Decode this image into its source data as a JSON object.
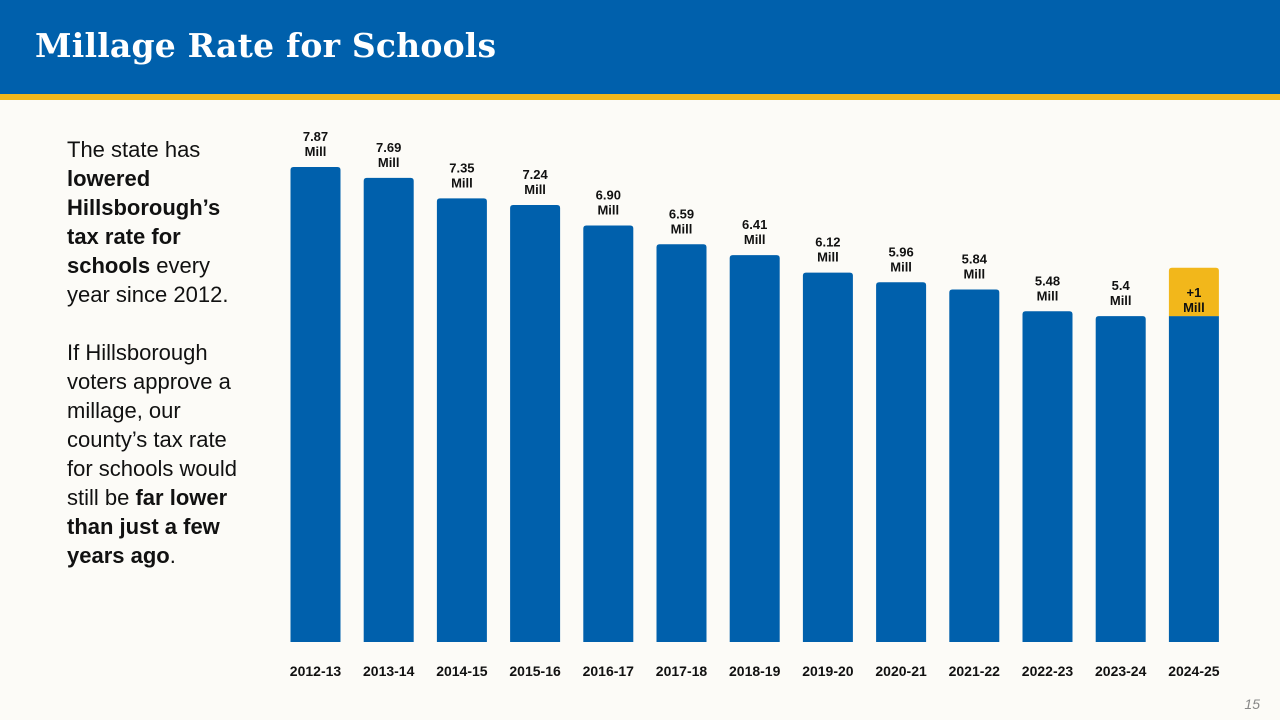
{
  "header": {
    "title": "Millage Rate for Schools"
  },
  "sidebar": {
    "p1": {
      "t1": "The state has ",
      "b1": "lowered Hillsborough’s tax rate for schools",
      "t2": " every year since 2012."
    },
    "p2": {
      "t1": "If Hillsborough voters approve a millage, our county’s tax rate for schools would still be ",
      "b1": "far lower than just a few years ago",
      "t2": "."
    }
  },
  "page_number": "15",
  "colors": {
    "header": "#0060ac",
    "accent": "#f2b71b",
    "bar": "#0060ac",
    "increase": "#f2b71b",
    "background": "#fcfbf7"
  },
  "chart_data": {
    "type": "bar",
    "categories": [
      "2012-13",
      "2013-14",
      "2014-15",
      "2015-16",
      "2016-17",
      "2017-18",
      "2018-19",
      "2019-20",
      "2020-21",
      "2021-22",
      "2022-23",
      "2023-24",
      "2024-25"
    ],
    "values": [
      7.87,
      7.69,
      7.35,
      7.24,
      6.9,
      6.59,
      6.41,
      6.12,
      5.96,
      5.84,
      5.48,
      5.4,
      5.4
    ],
    "value_labels": [
      "7.87",
      "7.69",
      "7.35",
      "7.24",
      "6.90",
      "6.59",
      "6.41",
      "6.12",
      "5.96",
      "5.84",
      "5.48",
      "5.4",
      ""
    ],
    "unit_label": "Mill",
    "increase": {
      "category": "2024-25",
      "value": 1,
      "label": "+1"
    },
    "ylim": [
      0,
      7.87
    ],
    "grid": false,
    "legend": "none"
  }
}
